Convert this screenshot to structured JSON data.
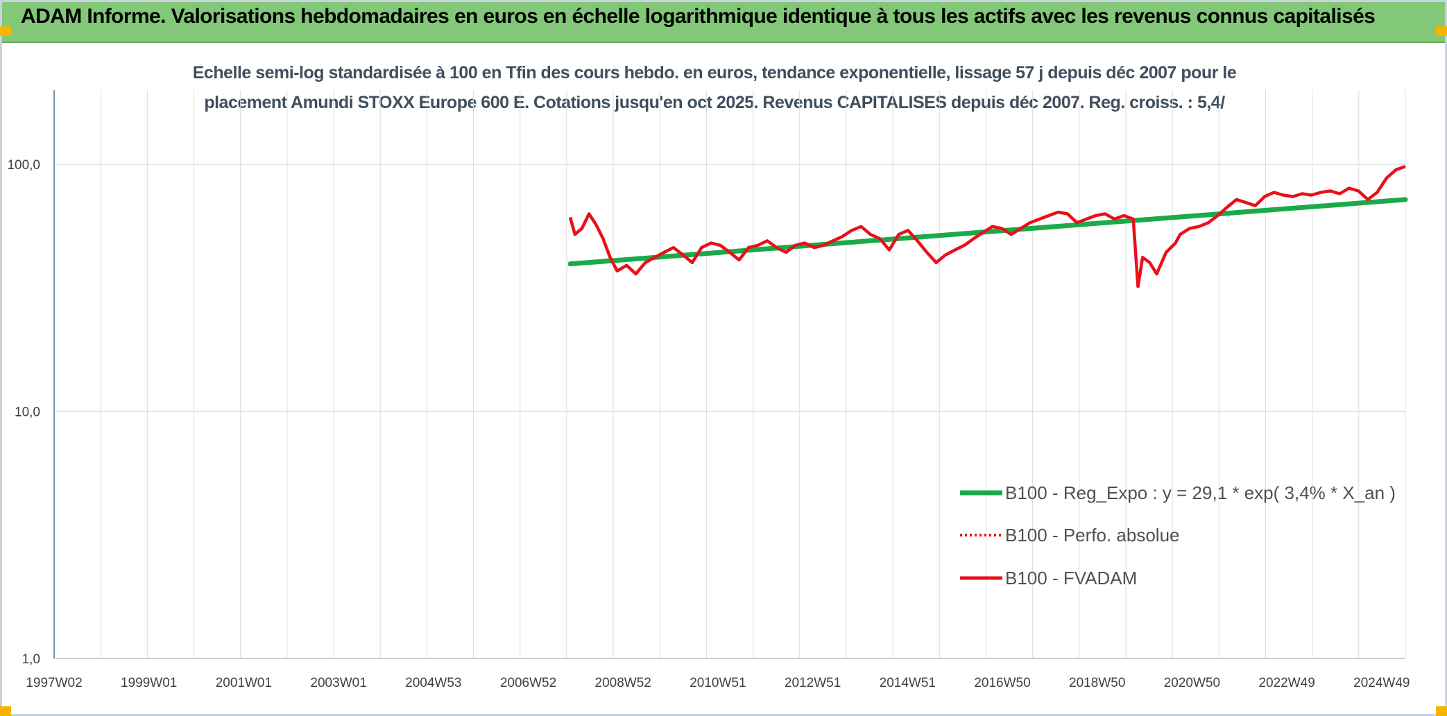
{
  "header": {
    "title": "ADAM Informe. Valorisations hebdomadaires en euros en échelle logarithmique identique à tous les actifs avec les revenus connus capitalisés"
  },
  "colors": {
    "header_bg": "#82c878",
    "regression": "#1aaa4a",
    "fvadam": "#e8101a",
    "perfo": "#e8101a",
    "grid": "#dcdcdc",
    "axis": "#4a72b0"
  },
  "chart_data": {
    "type": "line",
    "title": "Echelle semi-log standardisée à 100 en Tfin des cours hebdo. en euros, tendance exponentielle, lissage 57 j depuis déc 2007 pour le placement Amundi STOXX Europe 600 E. Cotations jusqu'en oct 2025. Revenus CAPITALISES depuis déc 2007. Reg. croiss. : 5,4/",
    "y_scale": "log",
    "ylim": [
      1,
      100
    ],
    "y_ticks": [
      "1,0",
      "10,0",
      "100,0"
    ],
    "x_ticks": [
      "1997W02",
      "1999W01",
      "2001W01",
      "2003W01",
      "2004W53",
      "2006W52",
      "2008W52",
      "2010W51",
      "2012W51",
      "2014W51",
      "2016W50",
      "2018W50",
      "2020W50",
      "2022W49",
      "2024W49"
    ],
    "xlim": [
      1997.0,
      2025.8
    ],
    "grid": true,
    "legend_position": "bottom-right",
    "legend": [
      "B100 - Reg_Expo : y = 29,1 * exp( 3,4% *  X_an )",
      "B100 - Perfo. absolue",
      "B100 - FVADAM"
    ],
    "series": [
      {
        "name": "B100 - Reg_Expo : y = 29,1 * exp( 3,4% *  X_an )",
        "style": "solid-thick",
        "x": [
          2008.0,
          2025.8
        ],
        "y": [
          39.5,
          72.0
        ]
      },
      {
        "name": "B100 - Perfo. absolue",
        "style": "dotted",
        "x": [],
        "y": []
      },
      {
        "name": "B100 - FVADAM",
        "style": "solid",
        "x": [
          2008.0,
          2008.1,
          2008.25,
          2008.4,
          2008.55,
          2008.7,
          2008.85,
          2009.0,
          2009.2,
          2009.4,
          2009.6,
          2009.8,
          2010.0,
          2010.2,
          2010.4,
          2010.6,
          2010.8,
          2011.0,
          2011.2,
          2011.4,
          2011.6,
          2011.8,
          2012.0,
          2012.2,
          2012.4,
          2012.6,
          2012.8,
          2013.0,
          2013.2,
          2013.4,
          2013.6,
          2013.8,
          2014.0,
          2014.2,
          2014.4,
          2014.6,
          2014.8,
          2015.0,
          2015.2,
          2015.4,
          2015.6,
          2015.8,
          2016.0,
          2016.2,
          2016.4,
          2016.6,
          2016.8,
          2017.0,
          2017.2,
          2017.4,
          2017.6,
          2017.8,
          2018.0,
          2018.2,
          2018.4,
          2018.6,
          2018.8,
          2019.0,
          2019.2,
          2019.4,
          2019.6,
          2019.8,
          2020.0,
          2020.1,
          2020.2,
          2020.35,
          2020.5,
          2020.7,
          2020.9,
          2021.0,
          2021.2,
          2021.4,
          2021.6,
          2021.8,
          2022.0,
          2022.2,
          2022.4,
          2022.6,
          2022.8,
          2023.0,
          2023.2,
          2023.4,
          2023.6,
          2023.8,
          2024.0,
          2024.2,
          2024.4,
          2024.6,
          2024.8,
          2025.0,
          2025.2,
          2025.4,
          2025.6,
          2025.8
        ],
        "y": [
          61,
          52,
          55,
          63,
          57,
          50,
          42,
          37,
          39,
          36,
          40,
          42,
          44,
          46,
          43,
          40,
          46,
          48,
          47,
          44,
          41,
          46,
          47,
          49,
          46,
          44,
          47,
          48,
          46,
          47,
          49,
          51,
          54,
          56,
          52,
          50,
          45,
          52,
          54,
          49,
          44,
          40,
          43,
          45,
          47,
          50,
          53,
          56,
          55,
          52,
          55,
          58,
          60,
          62,
          64,
          63,
          58,
          60,
          62,
          63,
          60,
          62,
          60,
          32,
          42,
          40,
          36,
          44,
          48,
          52,
          55,
          56,
          58,
          62,
          67,
          72,
          70,
          68,
          74,
          77,
          75,
          74,
          76,
          75,
          77,
          78,
          76,
          80,
          78,
          72,
          77,
          88,
          95,
          98
        ]
      }
    ]
  }
}
